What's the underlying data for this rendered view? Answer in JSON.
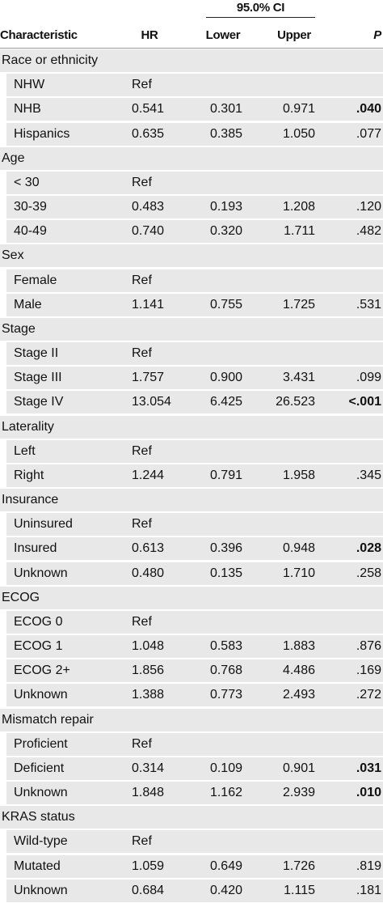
{
  "table": {
    "ci_header": "95.0% CI",
    "columns": [
      "Characteristic",
      "HR",
      "Lower",
      "Upper",
      "P"
    ],
    "groups": [
      {
        "title": "Race or ethnicity",
        "rows": [
          {
            "cells": [
              "NHW",
              "Ref",
              "",
              "",
              ""
            ]
          },
          {
            "cells": [
              "NHB",
              "0.541",
              "0.301",
              "0.971",
              ".040"
            ],
            "bold_p": true
          },
          {
            "cells": [
              "Hispanics",
              "0.635",
              "0.385",
              "1.050",
              ".077"
            ]
          }
        ]
      },
      {
        "title": "Age",
        "rows": [
          {
            "cells": [
              "< 30",
              "Ref",
              "",
              "",
              ""
            ]
          },
          {
            "cells": [
              "30-39",
              "0.483",
              "0.193",
              "1.208",
              ".120"
            ]
          },
          {
            "cells": [
              "40-49",
              "0.740",
              "0.320",
              "1.711",
              ".482"
            ]
          }
        ]
      },
      {
        "title": "Sex",
        "rows": [
          {
            "cells": [
              "Female",
              "Ref",
              "",
              "",
              ""
            ]
          },
          {
            "cells": [
              "Male",
              "1.141",
              "0.755",
              "1.725",
              ".531"
            ]
          }
        ]
      },
      {
        "title": "Stage",
        "rows": [
          {
            "cells": [
              "Stage II",
              "Ref",
              "",
              "",
              ""
            ]
          },
          {
            "cells": [
              "Stage III",
              "1.757",
              "0.900",
              "3.431",
              ".099"
            ]
          },
          {
            "cells": [
              "Stage IV",
              "13.054",
              "6.425",
              "26.523",
              "<.001"
            ],
            "bold_p": true
          }
        ]
      },
      {
        "title": "Laterality",
        "rows": [
          {
            "cells": [
              "Left",
              "Ref",
              "",
              "",
              ""
            ]
          },
          {
            "cells": [
              "Right",
              "1.244",
              "0.791",
              "1.958",
              ".345"
            ]
          }
        ]
      },
      {
        "title": "Insurance",
        "rows": [
          {
            "cells": [
              "Uninsured",
              "Ref",
              "",
              "",
              ""
            ]
          },
          {
            "cells": [
              "Insured",
              "0.613",
              "0.396",
              "0.948",
              ".028"
            ],
            "bold_p": true
          },
          {
            "cells": [
              "Unknown",
              "0.480",
              "0.135",
              "1.710",
              ".258"
            ]
          }
        ]
      },
      {
        "title": "ECOG",
        "rows": [
          {
            "cells": [
              "ECOG 0",
              "Ref",
              "",
              "",
              ""
            ]
          },
          {
            "cells": [
              "ECOG 1",
              "1.048",
              "0.583",
              "1.883",
              ".876"
            ]
          },
          {
            "cells": [
              "ECOG 2+",
              "1.856",
              "0.768",
              "4.486",
              ".169"
            ]
          },
          {
            "cells": [
              "Unknown",
              "1.388",
              "0.773",
              "2.493",
              ".272"
            ]
          }
        ]
      },
      {
        "title": "Mismatch repair",
        "rows": [
          {
            "cells": [
              "Proficient",
              "Ref",
              "",
              "",
              ""
            ]
          },
          {
            "cells": [
              "Deficient",
              "0.314",
              "0.109",
              "0.901",
              ".031"
            ],
            "bold_p": true
          },
          {
            "cells": [
              "Unknown",
              "1.848",
              "1.162",
              "2.939",
              ".010"
            ],
            "bold_p": true
          }
        ]
      },
      {
        "title": "KRAS status",
        "rows": [
          {
            "cells": [
              "Wild-type",
              "Ref",
              "",
              "",
              ""
            ]
          },
          {
            "cells": [
              "Mutated",
              "1.059",
              "0.649",
              "1.726",
              ".819"
            ]
          },
          {
            "cells": [
              "Unknown",
              "0.684",
              "0.420",
              "1.115",
              ".181"
            ]
          }
        ]
      }
    ]
  }
}
